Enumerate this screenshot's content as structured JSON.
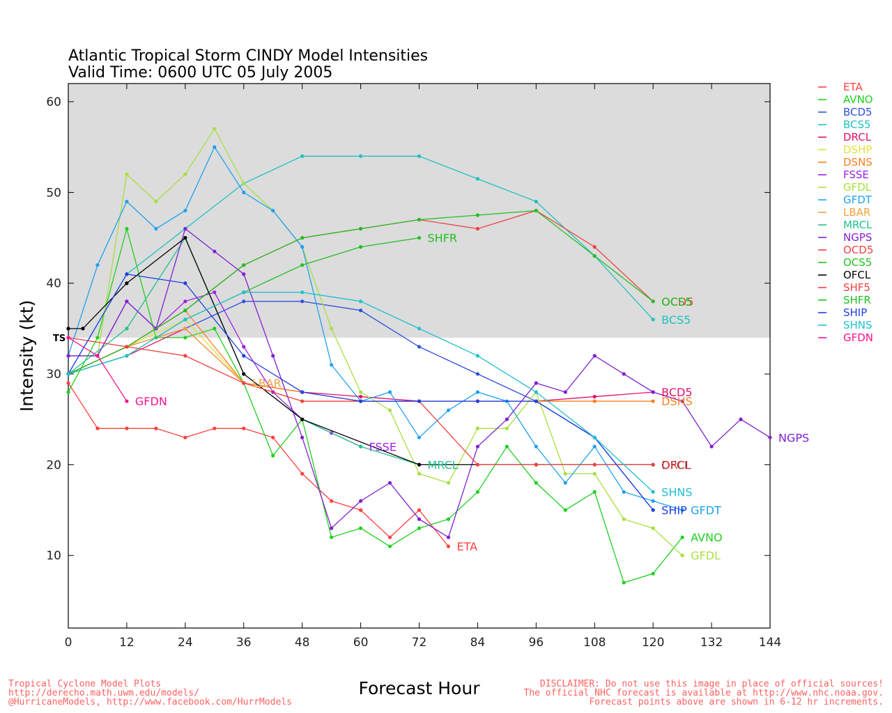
{
  "chart_data": {
    "type": "line",
    "title": "Atlantic Tropical Storm CINDY Model Intensities",
    "subtitle": "Valid Time: 0600 UTC 05 July 2005",
    "xlabel": "Forecast Hour",
    "ylabel": "Intensity (kt)",
    "xlim": [
      0,
      144
    ],
    "ylim": [
      2,
      62
    ],
    "xticks": [
      0,
      12,
      24,
      36,
      48,
      60,
      72,
      84,
      96,
      108,
      120,
      132,
      144
    ],
    "yticks": [
      10,
      20,
      30,
      40,
      50,
      60
    ],
    "shaded_band": {
      "from": 34,
      "to": 62,
      "color": "#dcdcdc"
    },
    "ts_threshold": {
      "value": 34,
      "label": "TS"
    },
    "legend_position": "right",
    "series": [
      {
        "name": "ETA",
        "color": "#ff4040",
        "x": [
          0,
          6,
          12,
          18,
          24,
          30,
          36,
          42,
          48,
          54,
          60,
          66,
          72,
          78
        ],
        "y": [
          29,
          24,
          24,
          24,
          23,
          24,
          24,
          23,
          19,
          16,
          15,
          12,
          15,
          11
        ],
        "end_label": "ETA"
      },
      {
        "name": "AVNO",
        "color": "#1ed01e",
        "x": [
          0,
          6,
          12,
          18,
          24,
          30,
          36,
          42,
          48,
          54,
          60,
          66,
          72,
          78,
          84,
          90,
          96,
          102,
          108,
          114,
          120,
          126
        ],
        "y": [
          28,
          34,
          46,
          34,
          34,
          35,
          29,
          21,
          25,
          12,
          13,
          11,
          13,
          14,
          17,
          22,
          18,
          15,
          17,
          7,
          8,
          12
        ],
        "end_label": "AVNO"
      },
      {
        "name": "BCD5",
        "color": "#3050e0",
        "x": [
          0,
          12,
          24,
          36,
          48,
          60,
          72,
          84,
          96,
          108,
          120
        ],
        "y": [
          30,
          33,
          35,
          38,
          38,
          37,
          33,
          30,
          27,
          23,
          15
        ],
        "end_label": ""
      },
      {
        "name": "BCS5",
        "color": "#20c0c0",
        "x": [
          0,
          12,
          24,
          36,
          48,
          60,
          72,
          84,
          96,
          108,
          120
        ],
        "y": [
          30,
          41,
          46,
          51,
          54,
          54,
          54,
          51.5,
          49,
          43,
          36
        ],
        "end_label": "BCS5"
      },
      {
        "name": "DRCL",
        "color": "#e0106e",
        "x": [
          0,
          12,
          24,
          36,
          48,
          60,
          72,
          84,
          96,
          108,
          120
        ],
        "y": [
          30,
          32,
          35,
          29,
          28,
          27.5,
          27,
          27,
          27,
          27.5,
          28
        ],
        "end_label": "BCD5"
      },
      {
        "name": "DSHP",
        "color": "#e0e040",
        "x": [
          0,
          12,
          24,
          36,
          48,
          60,
          72,
          84,
          96,
          108,
          120
        ],
        "y": [
          30,
          33,
          36,
          29,
          27,
          27,
          27,
          27,
          27,
          27,
          27
        ],
        "end_label": ""
      },
      {
        "name": "DSNS",
        "color": "#ff7f20",
        "x": [
          0,
          12,
          24,
          36,
          48,
          60,
          72,
          84,
          96,
          108,
          120
        ],
        "y": [
          30,
          33,
          37,
          29,
          28,
          27,
          27,
          27,
          27,
          27,
          27
        ],
        "end_label": "DSHS"
      },
      {
        "name": "FSSE",
        "color": "#a020e0",
        "x": [
          0,
          6,
          12,
          18,
          24,
          30,
          36,
          42,
          48,
          54,
          60
        ],
        "y": [
          32,
          32,
          38,
          35,
          38,
          39,
          33,
          28,
          25,
          23.5,
          22
        ],
        "end_label": "FSSE"
      },
      {
        "name": "GFDL",
        "color": "#a8e040",
        "x": [
          0,
          6,
          12,
          18,
          24,
          30,
          36,
          42,
          48,
          54,
          60,
          66,
          72,
          78,
          84,
          90,
          96,
          102,
          108,
          114,
          120,
          126
        ],
        "y": [
          32,
          32,
          52,
          49,
          52,
          57,
          51,
          48,
          44,
          35,
          28,
          26,
          19,
          18,
          24,
          24,
          28,
          19,
          19,
          14,
          13,
          10
        ],
        "end_label": "GFDL"
      },
      {
        "name": "GFDT",
        "color": "#20a0f0",
        "x": [
          0,
          6,
          12,
          18,
          24,
          30,
          36,
          42,
          48,
          54,
          60,
          66,
          72,
          78,
          84,
          90,
          96,
          102,
          108,
          114,
          120,
          126
        ],
        "y": [
          32,
          42,
          49,
          46,
          48,
          55,
          50,
          48,
          44,
          31,
          27,
          28,
          23,
          26,
          28,
          27,
          22,
          18,
          22,
          17,
          16,
          15
        ],
        "end_label": "GFDT"
      },
      {
        "name": "LBAR",
        "color": "#f0a040",
        "x": [
          0,
          12,
          24,
          36
        ],
        "y": [
          30,
          33,
          35,
          29
        ],
        "end_label": "LBAR"
      },
      {
        "name": "MRCL",
        "color": "#20c090",
        "x": [
          0,
          12,
          24,
          36,
          48,
          60,
          72
        ],
        "y": [
          30,
          35,
          45,
          30,
          25,
          22,
          20
        ],
        "end_label": "MRCL"
      },
      {
        "name": "NGPS",
        "color": "#8020d0",
        "x": [
          0,
          6,
          12,
          18,
          24,
          30,
          36,
          42,
          48,
          54,
          60,
          66,
          72,
          78,
          84,
          90,
          96,
          102,
          108,
          114,
          120,
          126,
          132,
          138,
          144
        ],
        "y": [
          32,
          32,
          38,
          35,
          46,
          43.5,
          41,
          32,
          23,
          13,
          16,
          18,
          14,
          12,
          22,
          25,
          29,
          28,
          32,
          30,
          28,
          27,
          22,
          25,
          23
        ],
        "end_label": "NGPS"
      },
      {
        "name": "OCD5",
        "color": "#f04040",
        "x": [
          0,
          12,
          24,
          36,
          48,
          60,
          72,
          84,
          96,
          108,
          120
        ],
        "y": [
          30,
          33,
          37,
          42,
          45,
          46,
          47,
          46,
          48,
          44,
          38
        ],
        "end_label": "OCD5"
      },
      {
        "name": "OCS5",
        "color": "#20c020",
        "x": [
          0,
          12,
          24,
          36,
          48,
          60,
          72,
          84,
          96,
          108,
          120
        ],
        "y": [
          30,
          33,
          37,
          42,
          45,
          46,
          47,
          47.5,
          48,
          43,
          38
        ],
        "end_label": "OCS5"
      },
      {
        "name": "OFCL",
        "color": "#000000",
        "x": [
          0,
          3,
          12,
          24,
          36,
          48,
          72,
          96,
          120
        ],
        "y": [
          35,
          35,
          40,
          45,
          30,
          25,
          20,
          20,
          20
        ],
        "end_label": "OFCL"
      },
      {
        "name": "SHF5",
        "color": "#f04040",
        "x": [
          0,
          12,
          24,
          36,
          48,
          60,
          72,
          84,
          96,
          108,
          120
        ],
        "y": [
          34,
          33,
          32,
          29,
          27,
          27,
          27,
          20,
          20,
          20,
          20
        ],
        "end_label": "DRCL"
      },
      {
        "name": "SHFR",
        "color": "#20c020",
        "x": [
          0,
          12,
          24,
          36,
          48,
          60,
          72
        ],
        "y": [
          30,
          32,
          36,
          39,
          42,
          44,
          45
        ],
        "end_label": "SHFR"
      },
      {
        "name": "SHIP",
        "color": "#2040e0",
        "x": [
          0,
          12,
          24,
          36,
          48,
          60,
          72,
          84,
          96,
          108,
          120
        ],
        "y": [
          30,
          41,
          40,
          32,
          28,
          27,
          27,
          27,
          27,
          23,
          15
        ],
        "end_label": "SHIP"
      },
      {
        "name": "SHNS",
        "color": "#20c0d0",
        "x": [
          0,
          12,
          24,
          36,
          48,
          60,
          72,
          84,
          96,
          108,
          120
        ],
        "y": [
          30,
          32,
          36,
          39,
          39,
          38,
          35,
          32,
          28,
          23,
          17
        ],
        "end_label": "SHNS"
      },
      {
        "name": "GFDN",
        "color": "#ff1090",
        "x": [
          0,
          6,
          12
        ],
        "y": [
          34,
          32,
          27
        ],
        "end_label": "GFDN"
      }
    ]
  },
  "footer": {
    "left_line1": "Tropical Cyclone Model Plots",
    "left_line2": "http://derecho.math.uwm.edu/models/",
    "left_line3": "@HurricaneModels, http://www.facebook.com/HurrModels",
    "right_line1": "DISCLAIMER: Do not use this image in place of official sources!",
    "right_line2": "The official NHC forecast is available at http://www.nhc.noaa.gov.",
    "right_line3": "Forecast points above are shown in 6-12 hr increments."
  }
}
